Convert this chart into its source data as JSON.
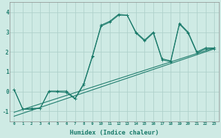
{
  "xlabel": "Humidex (Indice chaleur)",
  "ylabel": "",
  "background_color": "#ceeae4",
  "grid_color": "#aed0ca",
  "line_color": "#1a7a6a",
  "xlim": [
    -0.5,
    23.5
  ],
  "ylim": [
    -1.5,
    4.5
  ],
  "xticks": [
    0,
    1,
    2,
    3,
    4,
    5,
    6,
    7,
    8,
    9,
    10,
    11,
    12,
    13,
    14,
    15,
    16,
    17,
    18,
    19,
    20,
    21,
    22,
    23
  ],
  "yticks": [
    -1,
    0,
    1,
    2,
    3,
    4
  ],
  "line1_x": [
    0,
    1,
    2,
    3,
    4,
    5,
    6,
    7,
    8,
    9,
    10,
    11,
    12,
    13,
    14,
    15,
    16,
    17,
    18,
    19,
    20,
    21,
    22,
    23
  ],
  "line1_y": [
    0.1,
    -0.9,
    -0.9,
    -0.85,
    0.02,
    0.02,
    0.02,
    -0.35,
    0.4,
    1.8,
    3.35,
    3.55,
    3.9,
    3.85,
    3.0,
    2.6,
    3.0,
    1.65,
    1.55,
    3.45,
    3.0,
    2.0,
    2.2,
    2.2
  ],
  "line2_x": [
    0,
    1,
    2,
    3,
    4,
    5,
    6,
    7,
    8,
    9,
    10,
    11,
    12,
    13,
    14,
    15,
    16,
    17,
    18,
    19,
    20,
    21,
    22,
    23
  ],
  "line2_y": [
    0.1,
    -0.9,
    -0.85,
    -0.85,
    -0.0,
    -0.02,
    -0.05,
    -0.38,
    0.35,
    1.75,
    3.3,
    3.5,
    3.85,
    3.85,
    2.95,
    2.55,
    2.95,
    1.6,
    1.5,
    3.4,
    2.95,
    1.95,
    2.15,
    2.15
  ],
  "trend1_x": [
    0,
    23
  ],
  "trend1_y": [
    -1.05,
    2.2
  ],
  "trend2_x": [
    0,
    23
  ],
  "trend2_y": [
    -1.25,
    2.15
  ]
}
